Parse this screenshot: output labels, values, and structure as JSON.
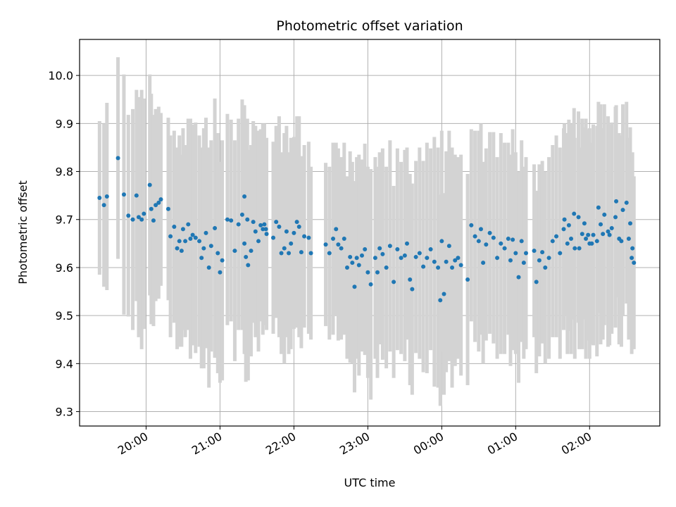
{
  "chart_data": {
    "type": "scatter",
    "title": "Photometric offset variation",
    "xlabel": "UTC time",
    "ylabel": "Photometric offset",
    "x_tick_labels": [
      "20:00",
      "21:00",
      "22:00",
      "23:00",
      "00:00",
      "01:00",
      "02:00"
    ],
    "x_tick_hours": [
      20,
      21,
      22,
      23,
      24,
      25,
      26
    ],
    "xlim_hours": [
      19.1,
      26.95
    ],
    "y_ticks": [
      "9.3",
      "9.4",
      "9.5",
      "9.6",
      "9.7",
      "9.8",
      "9.9",
      "10.0"
    ],
    "ylim": [
      9.27,
      10.075
    ],
    "grid": true,
    "marker_color": "#1f77b4",
    "errorbar_color": "#d3d3d3",
    "series": [
      {
        "points": [
          [
            19.37,
            9.745,
            0.16
          ],
          [
            19.43,
            9.73,
            0.17
          ],
          [
            19.47,
            9.748,
            0.195
          ],
          [
            19.62,
            9.828,
            0.21
          ],
          [
            19.7,
            9.752,
            0.25
          ],
          [
            19.76,
            9.708,
            0.21
          ],
          [
            19.82,
            9.7,
            0.23
          ],
          [
            19.87,
            9.75,
            0.22
          ],
          [
            19.9,
            9.705,
            0.25
          ],
          [
            19.94,
            9.7,
            0.27
          ],
          [
            19.97,
            9.712,
            0.24
          ],
          [
            20.05,
            9.772,
            0.23
          ],
          [
            20.07,
            9.722,
            0.24
          ],
          [
            20.1,
            9.698,
            0.22
          ],
          [
            20.13,
            9.73,
            0.2
          ],
          [
            20.17,
            9.735,
            0.2
          ],
          [
            20.2,
            9.742,
            0.18
          ],
          [
            20.3,
            9.722,
            0.19
          ],
          [
            20.33,
            9.665,
            0.21
          ],
          [
            20.38,
            9.685,
            0.2
          ],
          [
            20.42,
            9.64,
            0.21
          ],
          [
            20.45,
            9.655,
            0.22
          ],
          [
            20.48,
            9.635,
            0.2
          ],
          [
            20.5,
            9.68,
            0.21
          ],
          [
            20.53,
            9.655,
            0.2
          ],
          [
            20.57,
            9.69,
            0.22
          ],
          [
            20.6,
            9.66,
            0.25
          ],
          [
            20.63,
            9.668,
            0.23
          ],
          [
            20.67,
            9.662,
            0.24
          ],
          [
            20.72,
            9.655,
            0.22
          ],
          [
            20.75,
            9.62,
            0.23
          ],
          [
            20.78,
            9.64,
            0.25
          ],
          [
            20.81,
            9.672,
            0.24
          ],
          [
            20.85,
            9.6,
            0.25
          ],
          [
            20.88,
            9.645,
            0.22
          ],
          [
            20.93,
            9.682,
            0.27
          ],
          [
            20.97,
            9.63,
            0.25
          ],
          [
            21.0,
            9.59,
            0.23
          ],
          [
            21.03,
            9.615,
            0.25
          ],
          [
            21.1,
            9.7,
            0.22
          ],
          [
            21.15,
            9.698,
            0.21
          ],
          [
            21.2,
            9.635,
            0.23
          ],
          [
            21.25,
            9.69,
            0.22
          ],
          [
            21.3,
            9.71,
            0.24
          ],
          [
            21.33,
            9.65,
            0.23
          ],
          [
            21.35,
            9.622,
            0.26
          ],
          [
            21.38,
            9.605,
            0.24
          ],
          [
            21.42,
            9.635,
            0.22
          ],
          [
            21.45,
            9.695,
            0.21
          ],
          [
            21.48,
            9.675,
            0.22
          ],
          [
            21.52,
            9.655,
            0.23
          ],
          [
            21.55,
            9.688,
            0.2
          ],
          [
            21.58,
            9.68,
            0.22
          ],
          [
            21.6,
            9.69,
            0.21
          ],
          [
            21.33,
            9.748,
            0.19
          ],
          [
            21.37,
            9.7,
            0.21
          ],
          [
            21.62,
            9.68,
            0.18
          ],
          [
            21.63,
            9.67,
            0.2
          ],
          [
            21.72,
            9.662,
            0.2
          ],
          [
            21.76,
            9.695,
            0.2
          ],
          [
            21.8,
            9.685,
            0.23
          ],
          [
            21.83,
            9.63,
            0.21
          ],
          [
            21.87,
            9.64,
            0.24
          ],
          [
            21.9,
            9.675,
            0.22
          ],
          [
            21.93,
            9.63,
            0.21
          ],
          [
            21.96,
            9.65,
            0.22
          ],
          [
            22.0,
            9.672,
            0.2
          ],
          [
            22.04,
            9.695,
            0.22
          ],
          [
            22.07,
            9.685,
            0.23
          ],
          [
            22.1,
            9.632,
            0.2
          ],
          [
            22.14,
            9.665,
            0.19
          ],
          [
            22.2,
            9.662,
            0.2
          ],
          [
            22.23,
            9.63,
            0.18
          ],
          [
            22.43,
            9.648,
            0.17
          ],
          [
            22.48,
            9.63,
            0.18
          ],
          [
            22.53,
            9.66,
            0.2
          ],
          [
            22.57,
            9.68,
            0.18
          ],
          [
            22.6,
            9.648,
            0.2
          ],
          [
            22.64,
            9.64,
            0.19
          ],
          [
            22.68,
            9.66,
            0.2
          ],
          [
            22.72,
            9.6,
            0.19
          ],
          [
            22.76,
            9.622,
            0.22
          ],
          [
            22.79,
            9.61,
            0.21
          ],
          [
            22.82,
            9.56,
            0.22
          ],
          [
            22.85,
            9.62,
            0.21
          ],
          [
            22.88,
            9.605,
            0.23
          ],
          [
            22.92,
            9.625,
            0.2
          ],
          [
            22.96,
            9.638,
            0.22
          ],
          [
            23.0,
            9.59,
            0.22
          ],
          [
            23.04,
            9.565,
            0.24
          ],
          [
            23.1,
            9.62,
            0.21
          ],
          [
            23.13,
            9.59,
            0.22
          ],
          [
            23.16,
            9.64,
            0.2
          ],
          [
            23.2,
            9.628,
            0.22
          ],
          [
            23.25,
            9.6,
            0.21
          ],
          [
            23.3,
            9.645,
            0.22
          ],
          [
            23.35,
            9.57,
            0.2
          ],
          [
            23.4,
            9.638,
            0.21
          ],
          [
            23.45,
            9.62,
            0.2
          ],
          [
            23.5,
            9.625,
            0.22
          ],
          [
            23.53,
            9.65,
            0.2
          ],
          [
            23.57,
            9.575,
            0.22
          ],
          [
            23.6,
            9.555,
            0.22
          ],
          [
            23.65,
            9.622,
            0.2
          ],
          [
            23.7,
            9.63,
            0.22
          ],
          [
            23.75,
            9.602,
            0.22
          ],
          [
            23.8,
            9.62,
            0.24
          ],
          [
            23.85,
            9.638,
            0.21
          ],
          [
            23.9,
            9.612,
            0.26
          ],
          [
            23.95,
            9.6,
            0.25
          ],
          [
            23.98,
            9.532,
            0.22
          ],
          [
            24.0,
            9.655,
            0.23
          ],
          [
            24.03,
            9.545,
            0.21
          ],
          [
            24.06,
            9.612,
            0.23
          ],
          [
            24.1,
            9.645,
            0.24
          ],
          [
            24.14,
            9.6,
            0.25
          ],
          [
            24.18,
            9.615,
            0.22
          ],
          [
            24.22,
            9.62,
            0.21
          ],
          [
            24.26,
            9.605,
            0.23
          ],
          [
            24.35,
            9.575,
            0.22
          ],
          [
            24.4,
            9.688,
            0.2
          ],
          [
            24.45,
            9.665,
            0.22
          ],
          [
            24.5,
            9.655,
            0.23
          ],
          [
            24.53,
            9.68,
            0.22
          ],
          [
            24.56,
            9.61,
            0.21
          ],
          [
            24.6,
            9.648,
            0.2
          ],
          [
            24.65,
            9.672,
            0.21
          ],
          [
            24.7,
            9.662,
            0.22
          ],
          [
            24.75,
            9.62,
            0.21
          ],
          [
            24.8,
            9.65,
            0.23
          ],
          [
            24.85,
            9.64,
            0.22
          ],
          [
            24.9,
            9.66,
            0.2
          ],
          [
            24.93,
            9.615,
            0.22
          ],
          [
            24.96,
            9.658,
            0.23
          ],
          [
            25.0,
            9.63,
            0.21
          ],
          [
            25.04,
            9.58,
            0.22
          ],
          [
            25.08,
            9.655,
            0.21
          ],
          [
            25.11,
            9.61,
            0.2
          ],
          [
            25.14,
            9.63,
            0.2
          ],
          [
            25.25,
            9.635,
            0.18
          ],
          [
            25.28,
            9.57,
            0.19
          ],
          [
            25.32,
            9.615,
            0.2
          ],
          [
            25.36,
            9.632,
            0.19
          ],
          [
            25.4,
            9.6,
            0.2
          ],
          [
            25.45,
            9.62,
            0.21
          ],
          [
            25.5,
            9.655,
            0.2
          ],
          [
            25.55,
            9.665,
            0.21
          ],
          [
            25.6,
            9.63,
            0.22
          ],
          [
            25.65,
            9.68,
            0.21
          ],
          [
            25.7,
            9.65,
            0.23
          ],
          [
            25.75,
            9.66,
            0.24
          ],
          [
            25.8,
            9.64,
            0.23
          ],
          [
            25.85,
            9.705,
            0.22
          ],
          [
            25.9,
            9.67,
            0.24
          ],
          [
            25.95,
            9.66,
            0.25
          ],
          [
            26.0,
            9.65,
            0.24
          ],
          [
            26.05,
            9.668,
            0.23
          ],
          [
            26.1,
            9.655,
            0.24
          ],
          [
            26.15,
            9.69,
            0.25
          ],
          [
            26.2,
            9.71,
            0.23
          ],
          [
            26.25,
            9.675,
            0.24
          ],
          [
            26.3,
            9.682,
            0.22
          ],
          [
            26.35,
            9.705,
            0.23
          ],
          [
            26.4,
            9.66,
            0.22
          ],
          [
            26.45,
            9.72,
            0.22
          ],
          [
            26.5,
            9.735,
            0.21
          ],
          [
            26.55,
            9.692,
            0.2
          ],
          [
            26.58,
            9.64,
            0.2
          ],
          [
            26.6,
            9.61,
            0.18
          ],
          [
            25.66,
            9.7,
            0.2
          ],
          [
            25.72,
            9.688,
            0.22
          ],
          [
            25.79,
            9.712,
            0.22
          ],
          [
            25.86,
            9.64,
            0.21
          ],
          [
            25.93,
            9.692,
            0.2
          ],
          [
            25.98,
            9.668,
            0.22
          ],
          [
            26.03,
            9.65,
            0.21
          ],
          [
            26.12,
            9.725,
            0.22
          ],
          [
            26.18,
            9.67,
            0.22
          ],
          [
            26.27,
            9.668,
            0.23
          ],
          [
            26.36,
            9.738,
            0.2
          ],
          [
            26.43,
            9.655,
            0.22
          ],
          [
            26.53,
            9.66,
            0.21
          ],
          [
            26.57,
            9.62,
            0.2
          ]
        ]
      }
    ]
  }
}
